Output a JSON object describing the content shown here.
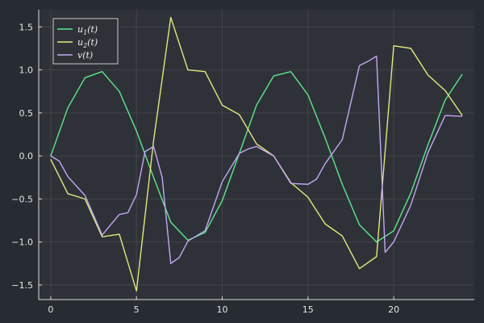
{
  "chart_data": {
    "type": "line",
    "title": "",
    "xlabel": "",
    "ylabel": "",
    "xlim": [
      -0.7,
      24.7
    ],
    "ylim": [
      -1.67,
      1.7
    ],
    "xticks": [
      0,
      5,
      10,
      15,
      20
    ],
    "yticks": [
      -1.5,
      -1.0,
      -0.5,
      0.0,
      0.5,
      1.0,
      1.5
    ],
    "ytick_labels": [
      "−1.5",
      "−1.0",
      "−0.5",
      "0.0",
      "0.5",
      "1.0",
      "1.5"
    ],
    "grid": true,
    "legend": "top-left",
    "background": "#2e3238",
    "series": [
      {
        "name": "u1(t)",
        "label_base": "u",
        "label_sub": "1",
        "label_tail": "(t)",
        "color": "#5ee68a",
        "x": [
          0,
          1,
          2,
          3,
          4,
          5,
          6,
          7,
          8,
          9,
          10,
          11,
          12,
          13,
          14,
          15,
          16,
          17,
          18,
          19,
          20,
          21,
          22,
          23,
          24
        ],
        "y": [
          0.0,
          0.56,
          0.91,
          0.98,
          0.75,
          0.29,
          -0.25,
          -0.77,
          -0.98,
          -0.89,
          -0.52,
          0.03,
          0.59,
          0.93,
          0.98,
          0.71,
          0.21,
          -0.33,
          -0.8,
          -1.0,
          -0.87,
          -0.43,
          0.13,
          0.65,
          0.95
        ]
      },
      {
        "name": "u2(t)",
        "label_base": "u",
        "label_sub": "2",
        "label_tail": "(t)",
        "color": "#e3e87c",
        "x": [
          0,
          1,
          2,
          3,
          4,
          5,
          6,
          7,
          8,
          9,
          10,
          11,
          12,
          13,
          14,
          15,
          16,
          17,
          18,
          19,
          20,
          21,
          22,
          23,
          24
        ],
        "y": [
          -0.04,
          -0.44,
          -0.5,
          -0.94,
          -0.91,
          -1.57,
          0.18,
          1.61,
          1.0,
          0.98,
          0.59,
          0.48,
          0.14,
          0.0,
          -0.31,
          -0.48,
          -0.79,
          -0.93,
          -1.31,
          -1.17,
          1.28,
          1.25,
          0.94,
          0.76,
          0.47
        ]
      },
      {
        "name": "v(t)",
        "label_base": "v",
        "label_sub": "",
        "label_tail": "(t)",
        "color": "#c4a6f5",
        "x": [
          0,
          0.5,
          1,
          2,
          3,
          3.5,
          4,
          4.5,
          5,
          5.5,
          6,
          6.5,
          7,
          7.5,
          8,
          9,
          10,
          11,
          11.5,
          12,
          13,
          14,
          15,
          15.5,
          16,
          17,
          18,
          18.5,
          19,
          19.5,
          20,
          21,
          22,
          23,
          24
        ],
        "y": [
          0.0,
          -0.06,
          -0.24,
          -0.46,
          -0.92,
          -0.8,
          -0.68,
          -0.66,
          -0.45,
          0.05,
          0.11,
          -0.25,
          -1.25,
          -1.18,
          -0.99,
          -0.87,
          -0.3,
          0.03,
          0.08,
          0.11,
          0.0,
          -0.32,
          -0.33,
          -0.27,
          -0.09,
          0.19,
          1.05,
          1.1,
          1.16,
          -1.12,
          -1.0,
          -0.57,
          0.04,
          0.47,
          0.46
        ]
      }
    ]
  }
}
